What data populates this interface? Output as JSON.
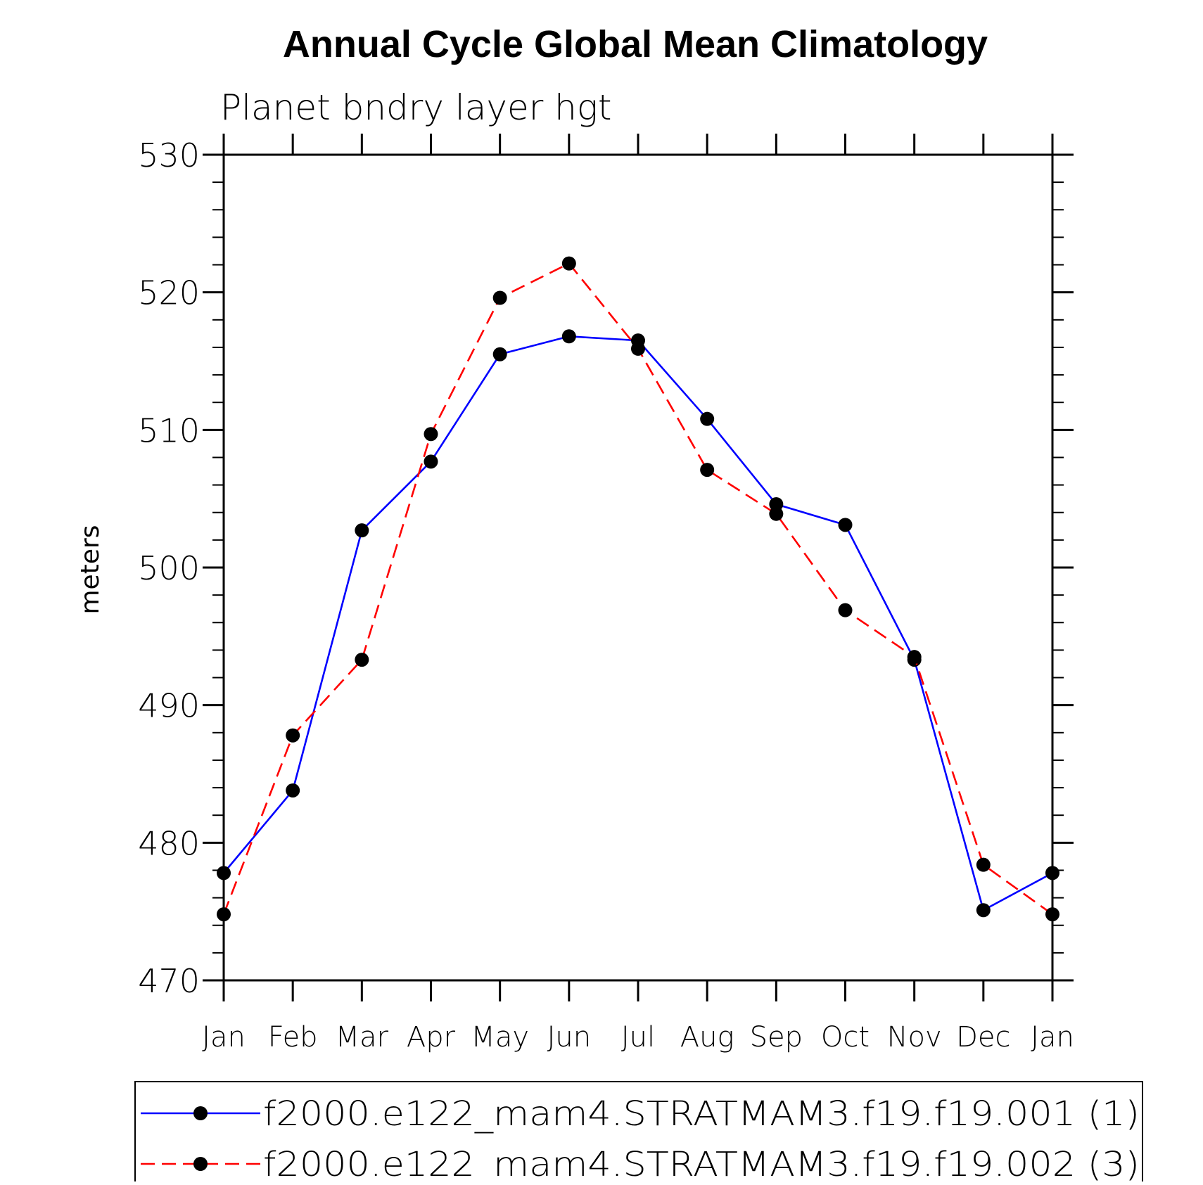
{
  "chart_data": {
    "type": "line",
    "title": "Annual Cycle Global Mean Climatology",
    "subtitle": "Planet bndry layer hgt",
    "xlabel": "",
    "ylabel": "meters",
    "ylim": [
      470,
      530
    ],
    "y_ticks": [
      470,
      480,
      490,
      500,
      510,
      520,
      530
    ],
    "y_minor_step": 2,
    "categories": [
      "Jan",
      "Feb",
      "Mar",
      "Apr",
      "May",
      "Jun",
      "Jul",
      "Aug",
      "Sep",
      "Oct",
      "Nov",
      "Dec",
      "Jan"
    ],
    "series": [
      {
        "name": "f2000.e122_mam4.STRATMAM3.f19.f19.001 (1)",
        "color": "#0000ff",
        "dash": "solid",
        "values": [
          477.8,
          483.8,
          502.7,
          507.7,
          515.5,
          516.8,
          516.5,
          510.8,
          504.6,
          503.1,
          493.3,
          475.1,
          477.8
        ]
      },
      {
        "name": "f2000.e122_mam4.STRATMAM3.f19.f19.002 (3)",
        "color": "#ff0000",
        "dash": "dashed",
        "values": [
          474.8,
          487.8,
          493.3,
          509.7,
          519.6,
          522.1,
          515.9,
          507.1,
          503.9,
          496.9,
          493.5,
          478.4,
          474.8
        ]
      }
    ],
    "legend_position": "bottom",
    "grid": false
  }
}
